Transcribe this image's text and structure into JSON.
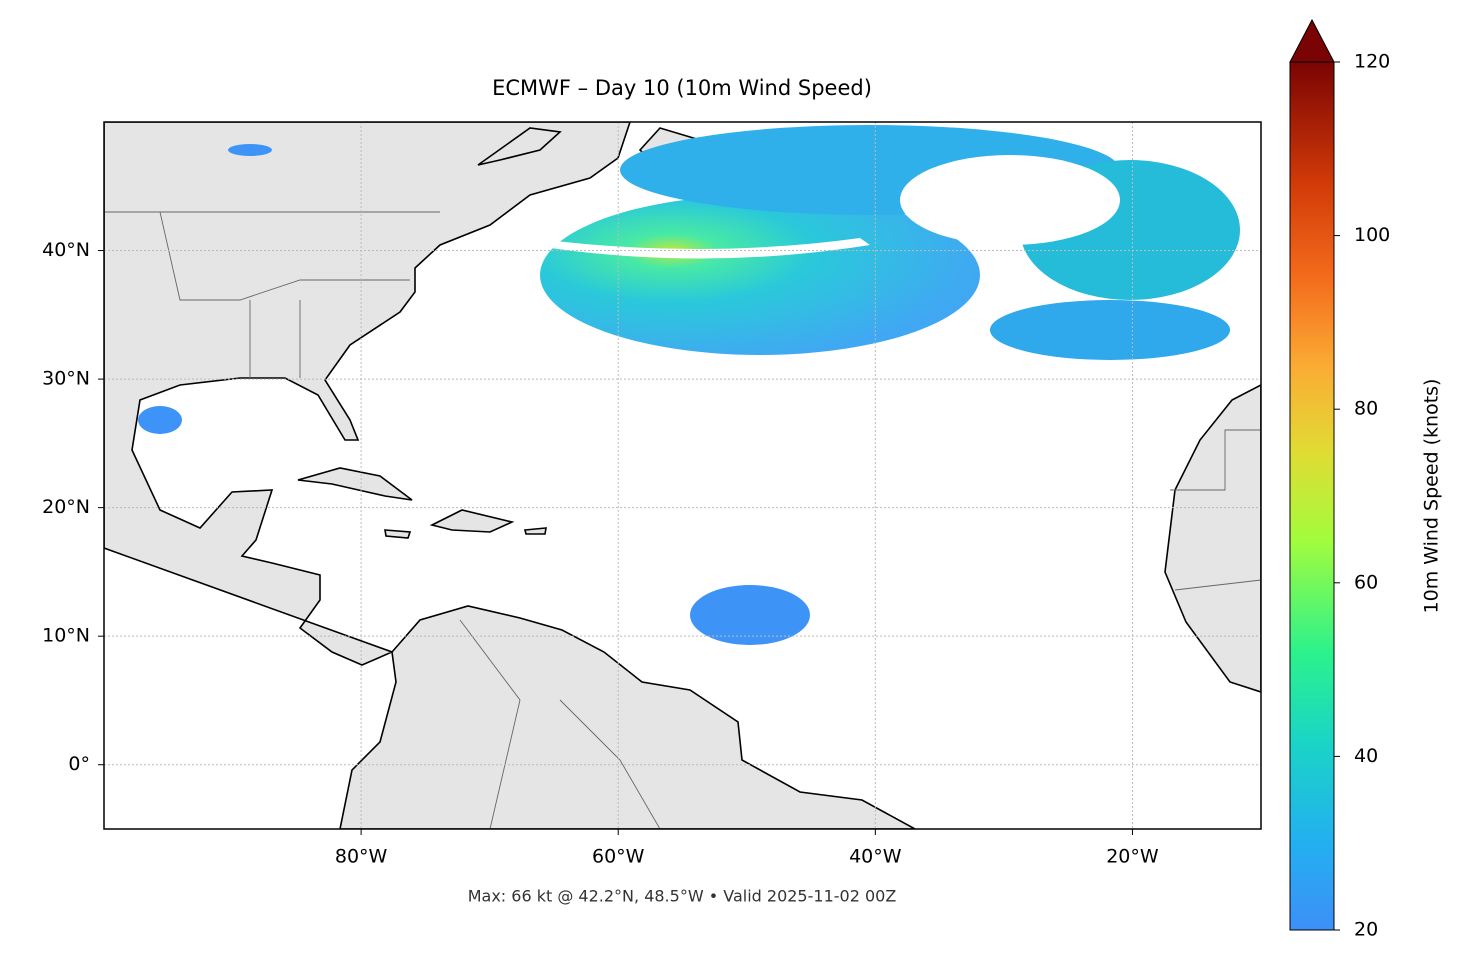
{
  "map": {
    "title": "ECMWF – Day 10 (10m Wind Speed)",
    "lonlim": [
      -100,
      -10
    ],
    "latlim": [
      -5,
      50
    ],
    "lonticks": [
      {
        "value": -80,
        "label": "80°W"
      },
      {
        "value": -60,
        "label": "60°W"
      },
      {
        "value": -40,
        "label": "40°W"
      },
      {
        "value": -20,
        "label": "20°W"
      }
    ],
    "latticks": [
      {
        "value": 40,
        "label": "40°N"
      },
      {
        "value": 30,
        "label": "30°N"
      },
      {
        "value": 20,
        "label": "20°N"
      },
      {
        "value": 10,
        "label": "10°N"
      },
      {
        "value": 0,
        "label": "0°"
      }
    ],
    "grid": true,
    "footer": "Max: 66 kt @ 42.2°N, 48.5°W • Valid 2025-11-02 00Z",
    "colorbar": {
      "label": "10m Wind Speed (knots)",
      "lim": [
        20,
        120
      ],
      "ticks": [
        20,
        40,
        60,
        80,
        100,
        120
      ]
    }
  }
}
